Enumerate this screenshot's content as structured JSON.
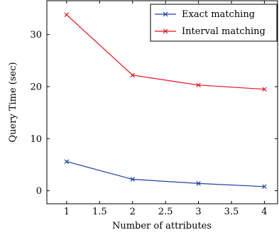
{
  "chart_data": {
    "type": "line",
    "title": "",
    "xlabel": "Number of attributes",
    "ylabel": "Query Time (sec)",
    "xlim": [
      0.7,
      4.2
    ],
    "ylim": [
      -2.5,
      36.5
    ],
    "xticks": [
      1,
      1.5,
      2,
      2.5,
      3,
      3.5,
      4
    ],
    "xtick_labels": [
      "1",
      "1.5",
      "2",
      "2.5",
      "3",
      "3.5",
      "4"
    ],
    "yticks": [
      0,
      10,
      20,
      30
    ],
    "ytick_labels": [
      "0",
      "10",
      "20",
      "30"
    ],
    "grid": false,
    "legend_position": "top-right",
    "x": [
      1,
      2,
      3,
      4
    ],
    "series": [
      {
        "name": "Exact matching",
        "color": "#1f3f9e",
        "marker": "x",
        "values": [
          5.6,
          2.2,
          1.4,
          0.8
        ]
      },
      {
        "name": "Interval matching",
        "color": "#e3121f",
        "marker": "x",
        "values": [
          33.8,
          22.2,
          20.3,
          19.5
        ]
      }
    ]
  }
}
